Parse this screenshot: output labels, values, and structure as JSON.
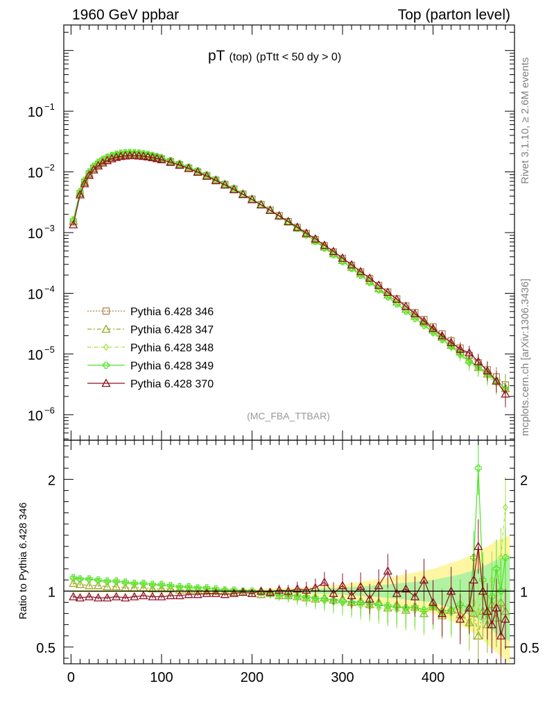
{
  "header": {
    "left": "1960 GeV ppbar",
    "right": "Top (parton level)"
  },
  "side_labels": {
    "rivet": "Rivet 3.1.10, ≥ 2.6M events",
    "mcplots": "mcplots.cern.ch [arXiv:1306.3436]"
  },
  "analysis_tag": "(MC_FBA_TTBAR)",
  "title": {
    "main": "pT",
    "part1": "(top)",
    "part2": "(pTtt < 50 dy > 0)"
  },
  "chart_data": [
    {
      "type": "line",
      "panel": "main",
      "yscale": "log",
      "xlim": [
        -8,
        490
      ],
      "ylim": [
        3e-07,
        1
      ],
      "ytick_labels": [
        "10",
        "10",
        "10",
        "10",
        "10",
        "10"
      ],
      "ytick_exponents": [
        "−1",
        "−2",
        "−3",
        "−4",
        "−5",
        "−6"
      ],
      "x": [
        2.5,
        10,
        15,
        20,
        25,
        30,
        35,
        40,
        45,
        50,
        55,
        60,
        65,
        70,
        75,
        80,
        85,
        90,
        95,
        100,
        110,
        120,
        130,
        140,
        150,
        160,
        170,
        180,
        190,
        200,
        210,
        220,
        230,
        240,
        250,
        260,
        270,
        280,
        290,
        300,
        310,
        320,
        330,
        340,
        350,
        360,
        370,
        380,
        390,
        400,
        410,
        420,
        430,
        440,
        450,
        460,
        470,
        480
      ],
      "series": [
        {
          "name": "Pythia 6.428 346",
          "color": "#b07c46",
          "marker": "open-square",
          "dash": "2,2",
          "values": [
            0.0015,
            0.0044,
            0.0067,
            0.0092,
            0.0113,
            0.0132,
            0.0148,
            0.0162,
            0.0174,
            0.0183,
            0.0189,
            0.0193,
            0.0195,
            0.0194,
            0.0192,
            0.0188,
            0.0183,
            0.0177,
            0.017,
            0.0163,
            0.0147,
            0.0131,
            0.0115,
            0.01,
            0.0086,
            0.0073,
            0.0062,
            0.0052,
            0.0043,
            0.00355,
            0.0029,
            0.00235,
            0.0019,
            0.00152,
            0.00122,
            0.00097,
            0.00077,
            0.00061,
            0.00048,
            0.000375,
            0.00029,
            0.000225,
            0.000175,
            0.000135,
            0.000105,
            8.1e-05,
            6.2e-05,
            4.8e-05,
            3.7e-05,
            2.8e-05,
            2.15e-05,
            1.65e-05,
            1.25e-05,
            9.5e-06,
            7.2e-06,
            5.5e-06,
            4.2e-06,
            3.1e-06
          ]
        },
        {
          "name": "Pythia 6.428 347",
          "color": "#9aaa28",
          "marker": "open-triangle",
          "dash": "6,3,2,3",
          "values": [
            0.00155,
            0.0045,
            0.0069,
            0.0095,
            0.0117,
            0.0136,
            0.0152,
            0.0166,
            0.0178,
            0.0187,
            0.0194,
            0.0198,
            0.02,
            0.0199,
            0.0197,
            0.0193,
            0.0187,
            0.0181,
            0.0174,
            0.0167,
            0.015,
            0.0134,
            0.0117,
            0.0102,
            0.0088,
            0.0074,
            0.0063,
            0.0053,
            0.00435,
            0.00358,
            0.00292,
            0.00237,
            0.00188,
            0.0015,
            0.00119,
            0.00094,
            0.00074,
            0.00058,
            0.00045,
            0.00035,
            0.00027,
            0.00021,
            0.00016,
            0.00012,
            9.4e-05,
            7.2e-05,
            5.5e-05,
            4.2e-05,
            3.3e-05,
            2.5e-05,
            1.9e-05,
            1.4e-05,
            1.1e-05,
            8e-06,
            6e-06,
            4.7e-06,
            3.6e-06,
            2.7e-06
          ]
        },
        {
          "name": "Pythia 6.428 348",
          "color": "#a4e040",
          "marker": "open-diamond",
          "dash": "5,2,1,2",
          "values": [
            0.0016,
            0.0047,
            0.0072,
            0.0099,
            0.0122,
            0.0142,
            0.0159,
            0.0173,
            0.0185,
            0.0194,
            0.0201,
            0.0205,
            0.0207,
            0.0206,
            0.0203,
            0.0198,
            0.0192,
            0.0186,
            0.0178,
            0.017,
            0.0153,
            0.0136,
            0.0119,
            0.0103,
            0.0089,
            0.0075,
            0.0063,
            0.0053,
            0.00435,
            0.00356,
            0.0029,
            0.00234,
            0.00185,
            0.00147,
            0.00116,
            0.00091,
            0.00071,
            0.00055,
            0.00043,
            0.00033,
            0.000255,
            0.000195,
            0.00015,
            0.000112,
            8.6e-05,
            6.6e-05,
            5e-05,
            3.8e-05,
            2.9e-05,
            2.2e-05,
            1.7e-05,
            1.3e-05,
            9.5e-06,
            7e-06,
            5.8e-06,
            4.4e-06,
            3.3e-06,
            2.5e-06
          ]
        },
        {
          "name": "Pythia 6.428 349",
          "color": "#4ce428",
          "marker": "open-cross",
          "dash": "",
          "values": [
            0.00162,
            0.00475,
            0.0073,
            0.01,
            0.0124,
            0.0144,
            0.0161,
            0.0175,
            0.0187,
            0.0196,
            0.0203,
            0.0207,
            0.0209,
            0.0208,
            0.0205,
            0.02,
            0.0194,
            0.0187,
            0.0179,
            0.0171,
            0.0154,
            0.0137,
            0.012,
            0.0104,
            0.0089,
            0.0075,
            0.0063,
            0.0053,
            0.00435,
            0.00357,
            0.00291,
            0.00235,
            0.00186,
            0.00148,
            0.00117,
            0.00092,
            0.00072,
            0.00056,
            0.000435,
            0.000335,
            0.000258,
            0.000198,
            0.000152,
            0.000115,
            8.8e-05,
            6.7e-05,
            5.1e-05,
            3.9e-05,
            3e-05,
            2.3e-05,
            1.75e-05,
            1.35e-05,
            1e-05,
            7.5e-06,
            6.2e-06,
            4.8e-06,
            3.6e-06,
            2.7e-06
          ]
        },
        {
          "name": "Pythia 6.428 370",
          "color": "#8e1020",
          "marker": "open-triangle",
          "dash": "",
          "values": [
            0.00135,
            0.0042,
            0.0064,
            0.0088,
            0.0108,
            0.0126,
            0.0141,
            0.0154,
            0.0165,
            0.0174,
            0.018,
            0.0184,
            0.0186,
            0.0186,
            0.0184,
            0.0181,
            0.0177,
            0.0172,
            0.0166,
            0.0159,
            0.0144,
            0.0129,
            0.0114,
            0.0099,
            0.0085,
            0.0072,
            0.0061,
            0.0051,
            0.00425,
            0.0035,
            0.00287,
            0.00233,
            0.00189,
            0.00153,
            0.00123,
            0.00098,
            0.00079,
            0.00062,
            0.00049,
            0.00038,
            0.000295,
            0.000228,
            0.000178,
            0.000136,
            0.000104,
            8e-05,
            6.1e-05,
            4.6e-05,
            3.5e-05,
            2.65e-05,
            2e-05,
            1.55e-05,
            1.2e-05,
            1.05e-05,
            7.5e-06,
            5.3e-06,
            3.6e-06,
            2.2e-06
          ]
        }
      ]
    },
    {
      "type": "line",
      "panel": "ratio",
      "ylabel": "Ratio to Pythia 6.428 346",
      "xlim": [
        -8,
        490
      ],
      "ylim": [
        0.35,
        2.35
      ],
      "xtick_labels": [
        "0",
        "100",
        "200",
        "300",
        "400"
      ],
      "ytick_labels": [
        "0.5",
        "1",
        "2"
      ],
      "reference": 1.0,
      "band": {
        "x": [
          0,
          100,
          200,
          250,
          300,
          350,
          400,
          430,
          450,
          470,
          485
        ],
        "upper": [
          1.01,
          1.01,
          1.02,
          1.03,
          1.06,
          1.12,
          1.2,
          1.28,
          1.35,
          1.45,
          1.5
        ],
        "lower": [
          0.99,
          0.99,
          0.98,
          0.97,
          0.94,
          0.88,
          0.8,
          0.7,
          0.6,
          0.45,
          0.35
        ]
      },
      "band2": {
        "x": [
          0,
          100,
          200,
          250,
          300,
          350,
          400,
          430,
          450,
          470,
          485
        ],
        "upper": [
          1.005,
          1.005,
          1.01,
          1.015,
          1.03,
          1.06,
          1.1,
          1.15,
          1.2,
          1.28,
          1.32
        ],
        "lower": [
          0.995,
          0.995,
          0.99,
          0.985,
          0.97,
          0.94,
          0.9,
          0.82,
          0.75,
          0.62,
          0.55
        ]
      },
      "x": [
        2.5,
        10,
        20,
        30,
        40,
        50,
        60,
        70,
        80,
        90,
        100,
        110,
        120,
        130,
        140,
        150,
        160,
        170,
        180,
        190,
        200,
        210,
        220,
        230,
        240,
        250,
        260,
        270,
        280,
        290,
        300,
        310,
        320,
        330,
        340,
        350,
        360,
        370,
        380,
        390,
        400,
        410,
        420,
        430,
        440,
        445,
        450,
        455,
        460,
        465,
        470,
        475,
        480
      ],
      "series": [
        {
          "name": "Pythia 6.428 347",
          "color": "#9aaa28",
          "marker": "open-triangle",
          "dash": "6,3,2,3",
          "values": [
            1.07,
            1.06,
            1.05,
            1.05,
            1.04,
            1.04,
            1.03,
            1.03,
            1.03,
            1.02,
            1.02,
            1.02,
            1.01,
            1.01,
            1.01,
            1.0,
            1.0,
            1.0,
            0.99,
            0.99,
            0.98,
            0.97,
            0.98,
            0.96,
            0.96,
            0.95,
            0.94,
            0.93,
            0.94,
            0.92,
            0.93,
            0.9,
            0.91,
            0.88,
            0.9,
            0.85,
            0.88,
            0.83,
            0.86,
            0.8,
            0.86,
            0.78,
            0.83,
            0.79,
            0.72,
            0.8,
            0.6,
            0.82,
            0.7,
            0.88,
            0.76,
            0.9,
            0.82
          ]
        },
        {
          "name": "Pythia 6.428 348",
          "color": "#a4e040",
          "marker": "open-diamond",
          "dash": "5,2,1,2",
          "values": [
            1.11,
            1.1,
            1.1,
            1.09,
            1.08,
            1.08,
            1.07,
            1.06,
            1.06,
            1.05,
            1.05,
            1.04,
            1.03,
            1.03,
            1.02,
            1.02,
            1.01,
            1.0,
            1.0,
            0.99,
            0.99,
            0.98,
            0.97,
            0.96,
            0.95,
            0.94,
            0.93,
            0.92,
            0.91,
            0.9,
            0.89,
            0.88,
            0.87,
            0.86,
            0.85,
            0.84,
            0.83,
            0.82,
            0.83,
            0.81,
            0.85,
            0.79,
            0.8,
            0.85,
            0.7,
            0.9,
            0.82,
            1.0,
            0.78,
            1.1,
            0.9,
            1.3,
            1.75
          ]
        },
        {
          "name": "Pythia 6.428 349",
          "color": "#4ce428",
          "marker": "open-cross",
          "dash": "",
          "values": [
            1.12,
            1.11,
            1.11,
            1.1,
            1.09,
            1.09,
            1.08,
            1.07,
            1.07,
            1.06,
            1.06,
            1.05,
            1.04,
            1.04,
            1.03,
            1.03,
            1.02,
            1.01,
            1.01,
            1.0,
            1.0,
            0.99,
            0.98,
            0.97,
            0.96,
            0.96,
            0.95,
            0.94,
            0.93,
            0.92,
            0.91,
            0.9,
            0.9,
            0.89,
            0.88,
            0.87,
            0.86,
            0.85,
            0.86,
            0.83,
            0.87,
            0.82,
            0.83,
            0.88,
            0.85,
            1.3,
            2.1,
            1.1,
            0.8,
            0.95,
            1.2,
            1.0,
            1.3
          ]
        },
        {
          "name": "Pythia 6.428 370",
          "color": "#8e1020",
          "marker": "open-triangle",
          "dash": "",
          "values": [
            0.95,
            0.94,
            0.95,
            0.94,
            0.94,
            0.95,
            0.94,
            0.95,
            0.96,
            0.95,
            0.95,
            0.96,
            0.96,
            0.97,
            0.97,
            0.98,
            0.98,
            0.97,
            0.98,
            0.99,
            0.98,
            1.0,
            0.99,
            1.01,
            1.0,
            1.02,
            1.01,
            1.03,
            1.08,
            0.98,
            1.05,
            0.96,
            1.04,
            0.93,
            1.05,
            1.18,
            0.98,
            1.02,
            0.95,
            1.1,
            0.9,
            0.8,
            1.0,
            0.75,
            0.85,
            1.1,
            1.4,
            1.0,
            0.82,
            0.7,
            0.85,
            0.6,
            0.75
          ]
        }
      ]
    }
  ]
}
